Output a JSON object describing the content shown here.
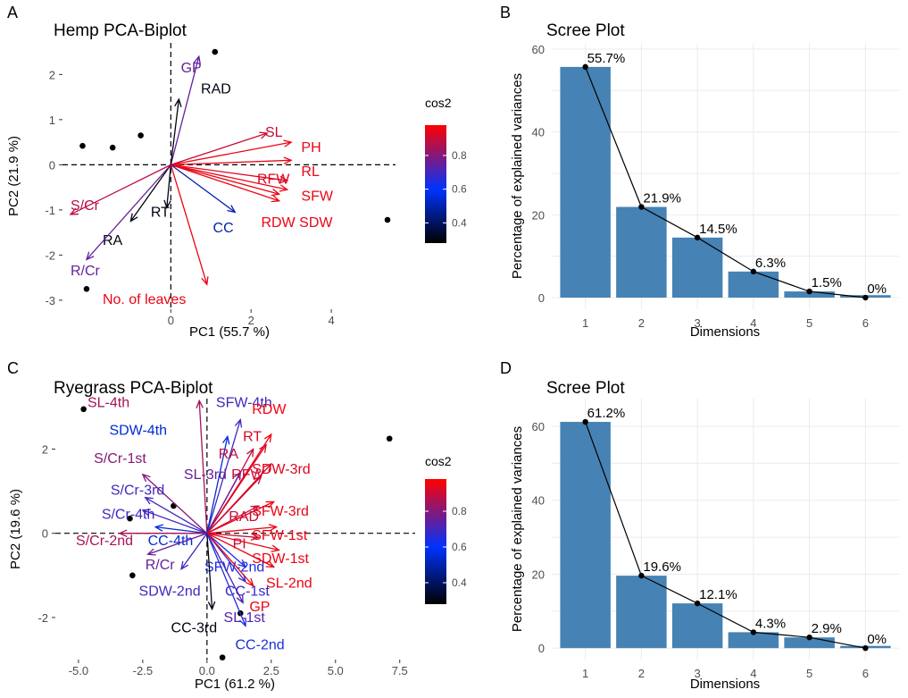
{
  "colors": {
    "low": "#000000",
    "mid": "#0033ff",
    "high": "#ff0000",
    "bar": "#4682b4",
    "point": "#000000"
  },
  "chart_data": [
    {
      "panel": "A",
      "type": "scatter",
      "title": "Hemp PCA-Biplot",
      "xlabel": "PC1 (55.7 %)",
      "ylabel": "PC2 (21.9 %)",
      "xlim": [
        -2.7,
        5.6
      ],
      "ylim": [
        -3.2,
        2.7
      ],
      "xticks": [
        0,
        2,
        4
      ],
      "yticks": [
        -3,
        -2,
        -1,
        0,
        1,
        2
      ],
      "legend": {
        "title": "cos2",
        "ticks": [
          0.4,
          0.6,
          0.8
        ],
        "range": [
          0.28,
          0.98
        ]
      },
      "points": [
        [
          1.1,
          2.5
        ],
        [
          -2.2,
          0.42
        ],
        [
          -1.45,
          0.38
        ],
        [
          -0.75,
          0.65
        ],
        [
          5.4,
          -1.22
        ],
        [
          -2.1,
          -2.75
        ]
      ],
      "variables": [
        {
          "name": "GP",
          "x": 0.7,
          "y": 2.4,
          "cos2": 0.75,
          "lx": 0.25,
          "ly": 2.15
        },
        {
          "name": "RAD",
          "x": 0.2,
          "y": 1.45,
          "cos2": 0.3,
          "lx": 0.75,
          "ly": 1.68
        },
        {
          "name": "SL",
          "x": 2.4,
          "y": 0.7,
          "cos2": 0.9,
          "lx": 2.35,
          "ly": 0.72
        },
        {
          "name": "PH",
          "x": 3.0,
          "y": 0.5,
          "cos2": 0.95,
          "lx": 3.25,
          "ly": 0.38
        },
        {
          "name": "RL",
          "x": 3.0,
          "y": 0.1,
          "cos2": 0.95,
          "lx": 3.25,
          "ly": -0.15
        },
        {
          "name": "RFW",
          "x": 2.9,
          "y": -0.35,
          "cos2": 0.93,
          "lx": 2.15,
          "ly": -0.32
        },
        {
          "name": "SFW",
          "x": 2.9,
          "y": -0.55,
          "cos2": 0.95,
          "lx": 3.25,
          "ly": -0.7
        },
        {
          "name": "RDW",
          "x": 2.7,
          "y": -0.65,
          "cos2": 0.95,
          "lx": 2.25,
          "ly": -1.28
        },
        {
          "name": "SDW",
          "x": 2.7,
          "y": -0.8,
          "cos2": 0.95,
          "lx": 3.2,
          "ly": -1.28
        },
        {
          "name": "CC",
          "x": 1.6,
          "y": -1.05,
          "cos2": 0.5,
          "lx": 1.05,
          "ly": -1.4
        },
        {
          "name": "RT",
          "x": -0.1,
          "y": -0.95,
          "cos2": 0.3,
          "lx": -0.5,
          "ly": -1.05
        },
        {
          "name": "RA",
          "x": -1.0,
          "y": -1.25,
          "cos2": 0.3,
          "lx": -1.7,
          "ly": -1.68
        },
        {
          "name": "S/Cr",
          "x": -2.5,
          "y": -1.1,
          "cos2": 0.88,
          "lx": -2.5,
          "ly": -0.9
        },
        {
          "name": "R/Cr",
          "x": -2.1,
          "y": -2.1,
          "cos2": 0.75,
          "lx": -2.5,
          "ly": -2.35
        },
        {
          "name": "No. of leaves",
          "x": 0.9,
          "y": -2.65,
          "cos2": 0.95,
          "lx": -1.7,
          "ly": -2.98
        }
      ]
    },
    {
      "panel": "B",
      "type": "bar",
      "title": "Scree Plot",
      "xlabel": "Dimensions",
      "ylabel": "Percentage of explained variances",
      "categories": [
        "1",
        "2",
        "3",
        "4",
        "5",
        "6"
      ],
      "values": [
        55.7,
        21.9,
        14.5,
        6.3,
        1.5,
        0
      ],
      "labels": [
        "55.7%",
        "21.9%",
        "14.5%",
        "6.3%",
        "1.5%",
        "0%"
      ],
      "yticks": [
        0,
        20,
        40,
        60
      ],
      "ylim": [
        -2.8,
        61.5
      ]
    },
    {
      "panel": "C",
      "type": "scatter",
      "title": "Ryegrass PCA-Biplot",
      "xlabel": "PC1 (61.2 %)",
      "ylabel": "PC2 (19.6 %)",
      "xlim": [
        -5.9,
        8.1
      ],
      "ylim": [
        -3.0,
        3.2
      ],
      "xticks": [
        -5.0,
        -2.5,
        0.0,
        2.5,
        5.0,
        7.5
      ],
      "xticklabels": [
        "-5.0",
        "-2.5",
        "0.0",
        "2.5",
        "5.0",
        "7.5"
      ],
      "yticks": [
        -2,
        0,
        2
      ],
      "legend": {
        "title": "cos2",
        "ticks": [
          0.4,
          0.6,
          0.8
        ],
        "range": [
          0.28,
          0.98
        ]
      },
      "points": [
        [
          -4.8,
          2.95
        ],
        [
          7.1,
          2.25
        ],
        [
          -3.0,
          0.35
        ],
        [
          -1.3,
          0.65
        ],
        [
          -2.9,
          -1.0
        ],
        [
          1.3,
          -1.9
        ],
        [
          0.6,
          -2.95
        ]
      ],
      "variables": [
        {
          "name": "SL-4th",
          "x": -0.3,
          "y": 3.15,
          "cos2": 0.85,
          "lx": -4.65,
          "ly": 3.1
        },
        {
          "name": "SFW-4th",
          "x": 1.3,
          "y": 2.7,
          "cos2": 0.7,
          "lx": 0.35,
          "ly": 3.1
        },
        {
          "name": "RDW",
          "x": 2.5,
          "y": 2.35,
          "cos2": 0.96,
          "lx": 1.75,
          "ly": 2.95
        },
        {
          "name": "SDW-4th",
          "x": 0.8,
          "y": 2.3,
          "cos2": 0.55,
          "lx": -3.8,
          "ly": 2.45
        },
        {
          "name": "RT",
          "x": 2.3,
          "y": 2.1,
          "cos2": 0.92,
          "lx": 1.4,
          "ly": 2.3
        },
        {
          "name": "RA",
          "x": 1.8,
          "y": 2.0,
          "cos2": 0.88,
          "lx": 0.45,
          "ly": 1.88
        },
        {
          "name": "SDW-3rd",
          "x": 2.5,
          "y": 1.65,
          "cos2": 0.93,
          "lx": 1.75,
          "ly": 1.52
        },
        {
          "name": "SL-3rd",
          "x": 1.3,
          "y": 1.45,
          "cos2": 0.75,
          "lx": -0.9,
          "ly": 1.4
        },
        {
          "name": "RFW",
          "x": 2.1,
          "y": 1.35,
          "cos2": 0.9,
          "lx": 0.95,
          "ly": 1.4
        },
        {
          "name": "S/Cr-1st",
          "x": -2.5,
          "y": 1.4,
          "cos2": 0.8,
          "lx": -4.4,
          "ly": 1.78
        },
        {
          "name": "S/Cr-3rd",
          "x": -2.4,
          "y": 0.85,
          "cos2": 0.7,
          "lx": -3.75,
          "ly": 1.02
        },
        {
          "name": "SFW-3rd",
          "x": 2.6,
          "y": 0.75,
          "cos2": 0.95,
          "lx": 1.75,
          "ly": 0.52
        },
        {
          "name": "RAD",
          "x": 2.0,
          "y": 0.65,
          "cos2": 0.9,
          "lx": 0.85,
          "ly": 0.4
        },
        {
          "name": "S/Cr-4th",
          "x": -2.5,
          "y": 0.55,
          "cos2": 0.7,
          "lx": -4.1,
          "ly": 0.45
        },
        {
          "name": "SFW-1st",
          "x": 2.7,
          "y": 0.15,
          "cos2": 0.95,
          "lx": 1.75,
          "ly": -0.05
        },
        {
          "name": "CC-4th",
          "x": -2.0,
          "y": 0.15,
          "cos2": 0.55,
          "lx": -2.3,
          "ly": -0.18
        },
        {
          "name": "S/Cr-2nd",
          "x": -3.4,
          "y": 0.0,
          "cos2": 0.85,
          "lx": -5.1,
          "ly": -0.18
        },
        {
          "name": "PI",
          "x": 2.0,
          "y": -0.1,
          "cos2": 0.9,
          "lx": 1.0,
          "ly": -0.25
        },
        {
          "name": "SDW-1st",
          "x": 2.8,
          "y": -0.4,
          "cos2": 0.95,
          "lx": 1.75,
          "ly": -0.6
        },
        {
          "name": "R/Cr",
          "x": -2.3,
          "y": -0.5,
          "cos2": 0.75,
          "lx": -2.4,
          "ly": -0.75
        },
        {
          "name": "SL-2nd",
          "x": 2.6,
          "y": -0.8,
          "cos2": 0.95,
          "lx": 2.3,
          "ly": -1.18
        },
        {
          "name": "SFW-2nd",
          "x": 1.5,
          "y": -0.8,
          "cos2": 0.65,
          "lx": -0.1,
          "ly": -0.8
        },
        {
          "name": "SDW-2nd",
          "x": -1.0,
          "y": -0.85,
          "cos2": 0.7,
          "lx": -2.65,
          "ly": -1.38
        },
        {
          "name": "CC-1st",
          "x": 1.5,
          "y": -1.15,
          "cos2": 0.68,
          "lx": 0.7,
          "ly": -1.38
        },
        {
          "name": "GP",
          "x": 1.8,
          "y": -1.25,
          "cos2": 0.95,
          "lx": 1.65,
          "ly": -1.75
        },
        {
          "name": "SL-1st",
          "x": 1.4,
          "y": -1.65,
          "cos2": 0.72,
          "lx": 0.65,
          "ly": -2.0
        },
        {
          "name": "CC-3rd",
          "x": 0.2,
          "y": -1.8,
          "cos2": 0.3,
          "lx": -1.4,
          "ly": -2.25
        },
        {
          "name": "CC-2nd",
          "x": 1.5,
          "y": -2.2,
          "cos2": 0.65,
          "lx": 1.1,
          "ly": -2.65
        }
      ]
    },
    {
      "panel": "D",
      "type": "bar",
      "title": "Scree Plot",
      "xlabel": "Dimensions",
      "ylabel": "Percentage of explained variances",
      "categories": [
        "1",
        "2",
        "3",
        "4",
        "5",
        "6"
      ],
      "values": [
        61.2,
        19.6,
        12.1,
        4.3,
        2.9,
        0
      ],
      "labels": [
        "61.2%",
        "19.6%",
        "12.1%",
        "4.3%",
        "2.9%",
        "0%"
      ],
      "yticks": [
        0,
        20,
        40,
        60
      ],
      "ylim": [
        -3.1,
        67.5
      ]
    }
  ]
}
